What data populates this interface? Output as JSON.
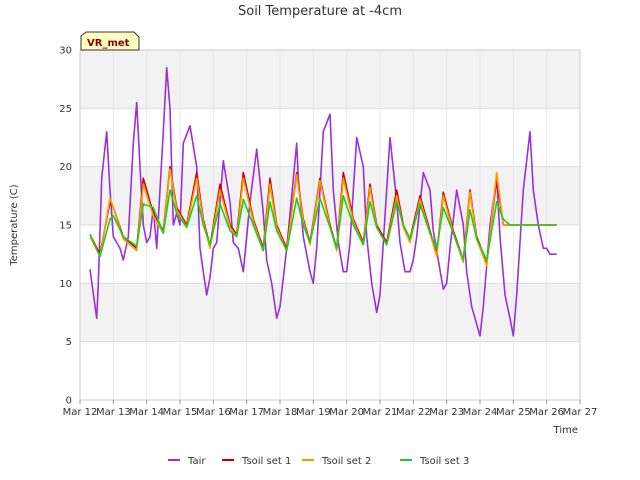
{
  "chart_data": {
    "type": "line",
    "title": "Soil Temperature at -4cm",
    "xlabel": "Time",
    "ylabel": "Temperature (C)",
    "ylim": [
      0,
      30
    ],
    "yticks": [
      0,
      5,
      10,
      15,
      20,
      25,
      30
    ],
    "xlim": [
      12,
      27
    ],
    "xticks": [
      {
        "value": 12,
        "label": "Mar 12"
      },
      {
        "value": 13,
        "label": "Mar 13"
      },
      {
        "value": 14,
        "label": "Mar 14"
      },
      {
        "value": 15,
        "label": "Mar 15"
      },
      {
        "value": 16,
        "label": "Mar 16"
      },
      {
        "value": 17,
        "label": "Mar 17"
      },
      {
        "value": 18,
        "label": "Mar 18"
      },
      {
        "value": 19,
        "label": "Mar 19"
      },
      {
        "value": 20,
        "label": "Mar 20"
      },
      {
        "value": 21,
        "label": "Mar 21"
      },
      {
        "value": 22,
        "label": "Mar 22"
      },
      {
        "value": 23,
        "label": "Mar 23"
      },
      {
        "value": 24,
        "label": "Mar 24"
      },
      {
        "value": 25,
        "label": "Mar 25"
      },
      {
        "value": 26,
        "label": "Mar 26"
      },
      {
        "value": 27,
        "label": "Mar 27"
      }
    ],
    "grid": true,
    "legend_position": "bottom",
    "annotation": "VR_met",
    "series": [
      {
        "name": "Tair",
        "color": "#9b30d9",
        "x": [
          12.3,
          12.5,
          12.55,
          12.65,
          12.8,
          12.9,
          13.0,
          13.1,
          13.2,
          13.3,
          13.45,
          13.6,
          13.7,
          13.8,
          13.9,
          14.0,
          14.1,
          14.2,
          14.3,
          14.5,
          14.6,
          14.7,
          14.8,
          14.9,
          15.0,
          15.1,
          15.3,
          15.5,
          15.6,
          15.7,
          15.8,
          15.9,
          16.0,
          16.1,
          16.3,
          16.5,
          16.6,
          16.75,
          16.9,
          17.0,
          17.1,
          17.3,
          17.5,
          17.6,
          17.75,
          17.9,
          18.0,
          18.2,
          18.5,
          18.55,
          18.7,
          18.9,
          19.0,
          19.1,
          19.3,
          19.5,
          19.6,
          19.75,
          19.9,
          20.0,
          20.1,
          20.3,
          20.5,
          20.6,
          20.75,
          20.9,
          21.0,
          21.1,
          21.3,
          21.5,
          21.6,
          21.75,
          21.9,
          22.0,
          22.1,
          22.3,
          22.5,
          22.6,
          22.75,
          22.9,
          23.0,
          23.1,
          23.3,
          23.5,
          23.6,
          23.75,
          23.9,
          24.0,
          24.1,
          24.3,
          24.5,
          24.6,
          24.75,
          24.9,
          25.0,
          25.1,
          25.3,
          25.5,
          25.6,
          25.75,
          25.9,
          26.0,
          26.1,
          26.2,
          26.3
        ],
        "values": [
          11.2,
          7.0,
          10.0,
          19.0,
          23.0,
          18.0,
          14.0,
          13.5,
          13.0,
          12.0,
          14.0,
          22.0,
          25.5,
          20.0,
          15.0,
          13.5,
          14.0,
          16.5,
          13.0,
          23.0,
          28.5,
          25.0,
          15.0,
          16.0,
          15.0,
          22.0,
          23.5,
          20.0,
          13.0,
          11.0,
          9.0,
          10.5,
          13.0,
          13.5,
          20.5,
          17.0,
          13.5,
          13.0,
          11.0,
          14.0,
          17.0,
          21.5,
          16.0,
          12.0,
          10.0,
          7.0,
          8.0,
          13.0,
          22.0,
          19.0,
          14.0,
          11.0,
          10.0,
          13.0,
          23.0,
          24.5,
          18.0,
          13.5,
          11.0,
          11.0,
          13.5,
          22.5,
          20.0,
          14.0,
          10.0,
          7.5,
          9.0,
          13.5,
          22.5,
          17.0,
          13.5,
          11.0,
          11.0,
          12.0,
          14.0,
          19.5,
          18.0,
          14.5,
          12.0,
          9.5,
          10.0,
          13.0,
          18.0,
          15.0,
          11.0,
          8.0,
          6.5,
          5.5,
          8.0,
          15.0,
          19.0,
          14.0,
          9.0,
          7.0,
          5.5,
          9.0,
          18.0,
          23.0,
          18.0,
          15.0,
          13.0,
          13.0,
          12.5,
          12.5,
          12.5
        ]
      },
      {
        "name": "Tsoil set 1",
        "color": "#cc0000",
        "x": [
          12.3,
          12.6,
          12.9,
          13.0,
          13.3,
          13.7,
          13.9,
          14.2,
          14.5,
          14.7,
          14.9,
          15.2,
          15.5,
          15.7,
          15.9,
          16.2,
          16.5,
          16.7,
          16.9,
          17.2,
          17.5,
          17.7,
          17.9,
          18.2,
          18.5,
          18.7,
          18.9,
          19.2,
          19.5,
          19.7,
          19.9,
          20.2,
          20.5,
          20.7,
          20.9,
          21.2,
          21.5,
          21.7,
          21.9,
          22.2,
          22.5,
          22.7,
          22.9,
          23.2,
          23.5,
          23.7,
          23.9,
          24.2,
          24.5,
          24.7,
          24.9,
          25.2,
          25.5,
          25.7,
          25.9,
          26.2,
          26.3
        ],
        "values": [
          14.2,
          12.5,
          17.0,
          16.5,
          14.0,
          13.0,
          19.0,
          16.0,
          14.5,
          20.0,
          16.5,
          15.0,
          19.5,
          15.5,
          13.2,
          18.5,
          15.0,
          14.2,
          19.5,
          15.5,
          13.0,
          19.0,
          15.0,
          13.0,
          19.5,
          15.5,
          13.5,
          19.0,
          15.0,
          13.0,
          19.5,
          15.5,
          13.5,
          18.5,
          15.0,
          13.5,
          18.0,
          15.0,
          13.8,
          17.5,
          14.5,
          12.5,
          17.8,
          14.5,
          12.0,
          18.0,
          14.0,
          11.8,
          19.0,
          15.0,
          15.0,
          15.0,
          15.0,
          15.0,
          15.0,
          15.0,
          15.0
        ]
      },
      {
        "name": "Tsoil set 2",
        "color": "#ff9900",
        "x": [
          12.3,
          12.6,
          12.9,
          13.0,
          13.3,
          13.7,
          13.9,
          14.2,
          14.5,
          14.7,
          14.9,
          15.2,
          15.5,
          15.7,
          15.9,
          16.2,
          16.5,
          16.7,
          16.9,
          17.2,
          17.5,
          17.7,
          17.9,
          18.2,
          18.5,
          18.7,
          18.9,
          19.2,
          19.5,
          19.7,
          19.9,
          20.2,
          20.5,
          20.7,
          20.9,
          21.2,
          21.5,
          21.7,
          21.9,
          22.2,
          22.5,
          22.7,
          22.9,
          23.2,
          23.5,
          23.7,
          23.9,
          24.2,
          24.5,
          24.7,
          24.9,
          25.2,
          25.5,
          25.7,
          25.9,
          26.2,
          26.3
        ],
        "values": [
          14.0,
          12.3,
          17.3,
          16.5,
          13.8,
          12.8,
          18.5,
          15.8,
          14.3,
          19.8,
          16.3,
          14.8,
          19.0,
          15.3,
          13.0,
          18.0,
          14.8,
          14.0,
          19.0,
          15.3,
          12.8,
          18.5,
          14.8,
          12.8,
          19.3,
          15.3,
          13.3,
          18.8,
          14.8,
          12.8,
          19.0,
          15.3,
          13.3,
          18.2,
          14.8,
          13.3,
          17.5,
          14.8,
          13.5,
          17.2,
          14.3,
          12.3,
          17.5,
          14.3,
          11.8,
          17.8,
          13.8,
          11.5,
          19.5,
          15.0,
          15.0,
          15.0,
          15.0,
          15.0,
          15.0,
          15.0,
          15.0
        ]
      },
      {
        "name": "Tsoil set 3",
        "color": "#22cc22",
        "x": [
          12.3,
          12.6,
          12.9,
          13.0,
          13.3,
          13.7,
          13.9,
          14.2,
          14.5,
          14.7,
          14.9,
          15.2,
          15.5,
          15.7,
          15.9,
          16.2,
          16.5,
          16.7,
          16.9,
          17.2,
          17.5,
          17.7,
          17.9,
          18.2,
          18.5,
          18.7,
          18.9,
          19.2,
          19.5,
          19.7,
          19.9,
          20.2,
          20.5,
          20.7,
          20.9,
          21.2,
          21.5,
          21.7,
          21.9,
          22.2,
          22.5,
          22.7,
          22.9,
          23.2,
          23.5,
          23.7,
          23.9,
          24.2,
          24.5,
          24.7,
          24.9,
          25.2,
          25.5,
          25.7,
          25.9,
          26.2,
          26.3
        ],
        "values": [
          14.2,
          12.3,
          15.5,
          15.8,
          14.0,
          13.2,
          16.8,
          16.5,
          14.3,
          18.0,
          16.0,
          14.8,
          17.5,
          15.0,
          13.3,
          16.8,
          14.5,
          14.0,
          17.2,
          15.0,
          12.8,
          17.0,
          14.5,
          12.8,
          17.3,
          15.0,
          13.5,
          17.3,
          14.8,
          13.0,
          17.5,
          15.0,
          13.3,
          17.0,
          14.8,
          13.3,
          17.0,
          15.0,
          13.8,
          16.8,
          14.3,
          13.0,
          16.5,
          14.3,
          12.0,
          16.3,
          13.8,
          12.0,
          17.0,
          15.5,
          15.0,
          15.0,
          15.0,
          15.0,
          15.0,
          15.0,
          15.0
        ]
      }
    ]
  }
}
